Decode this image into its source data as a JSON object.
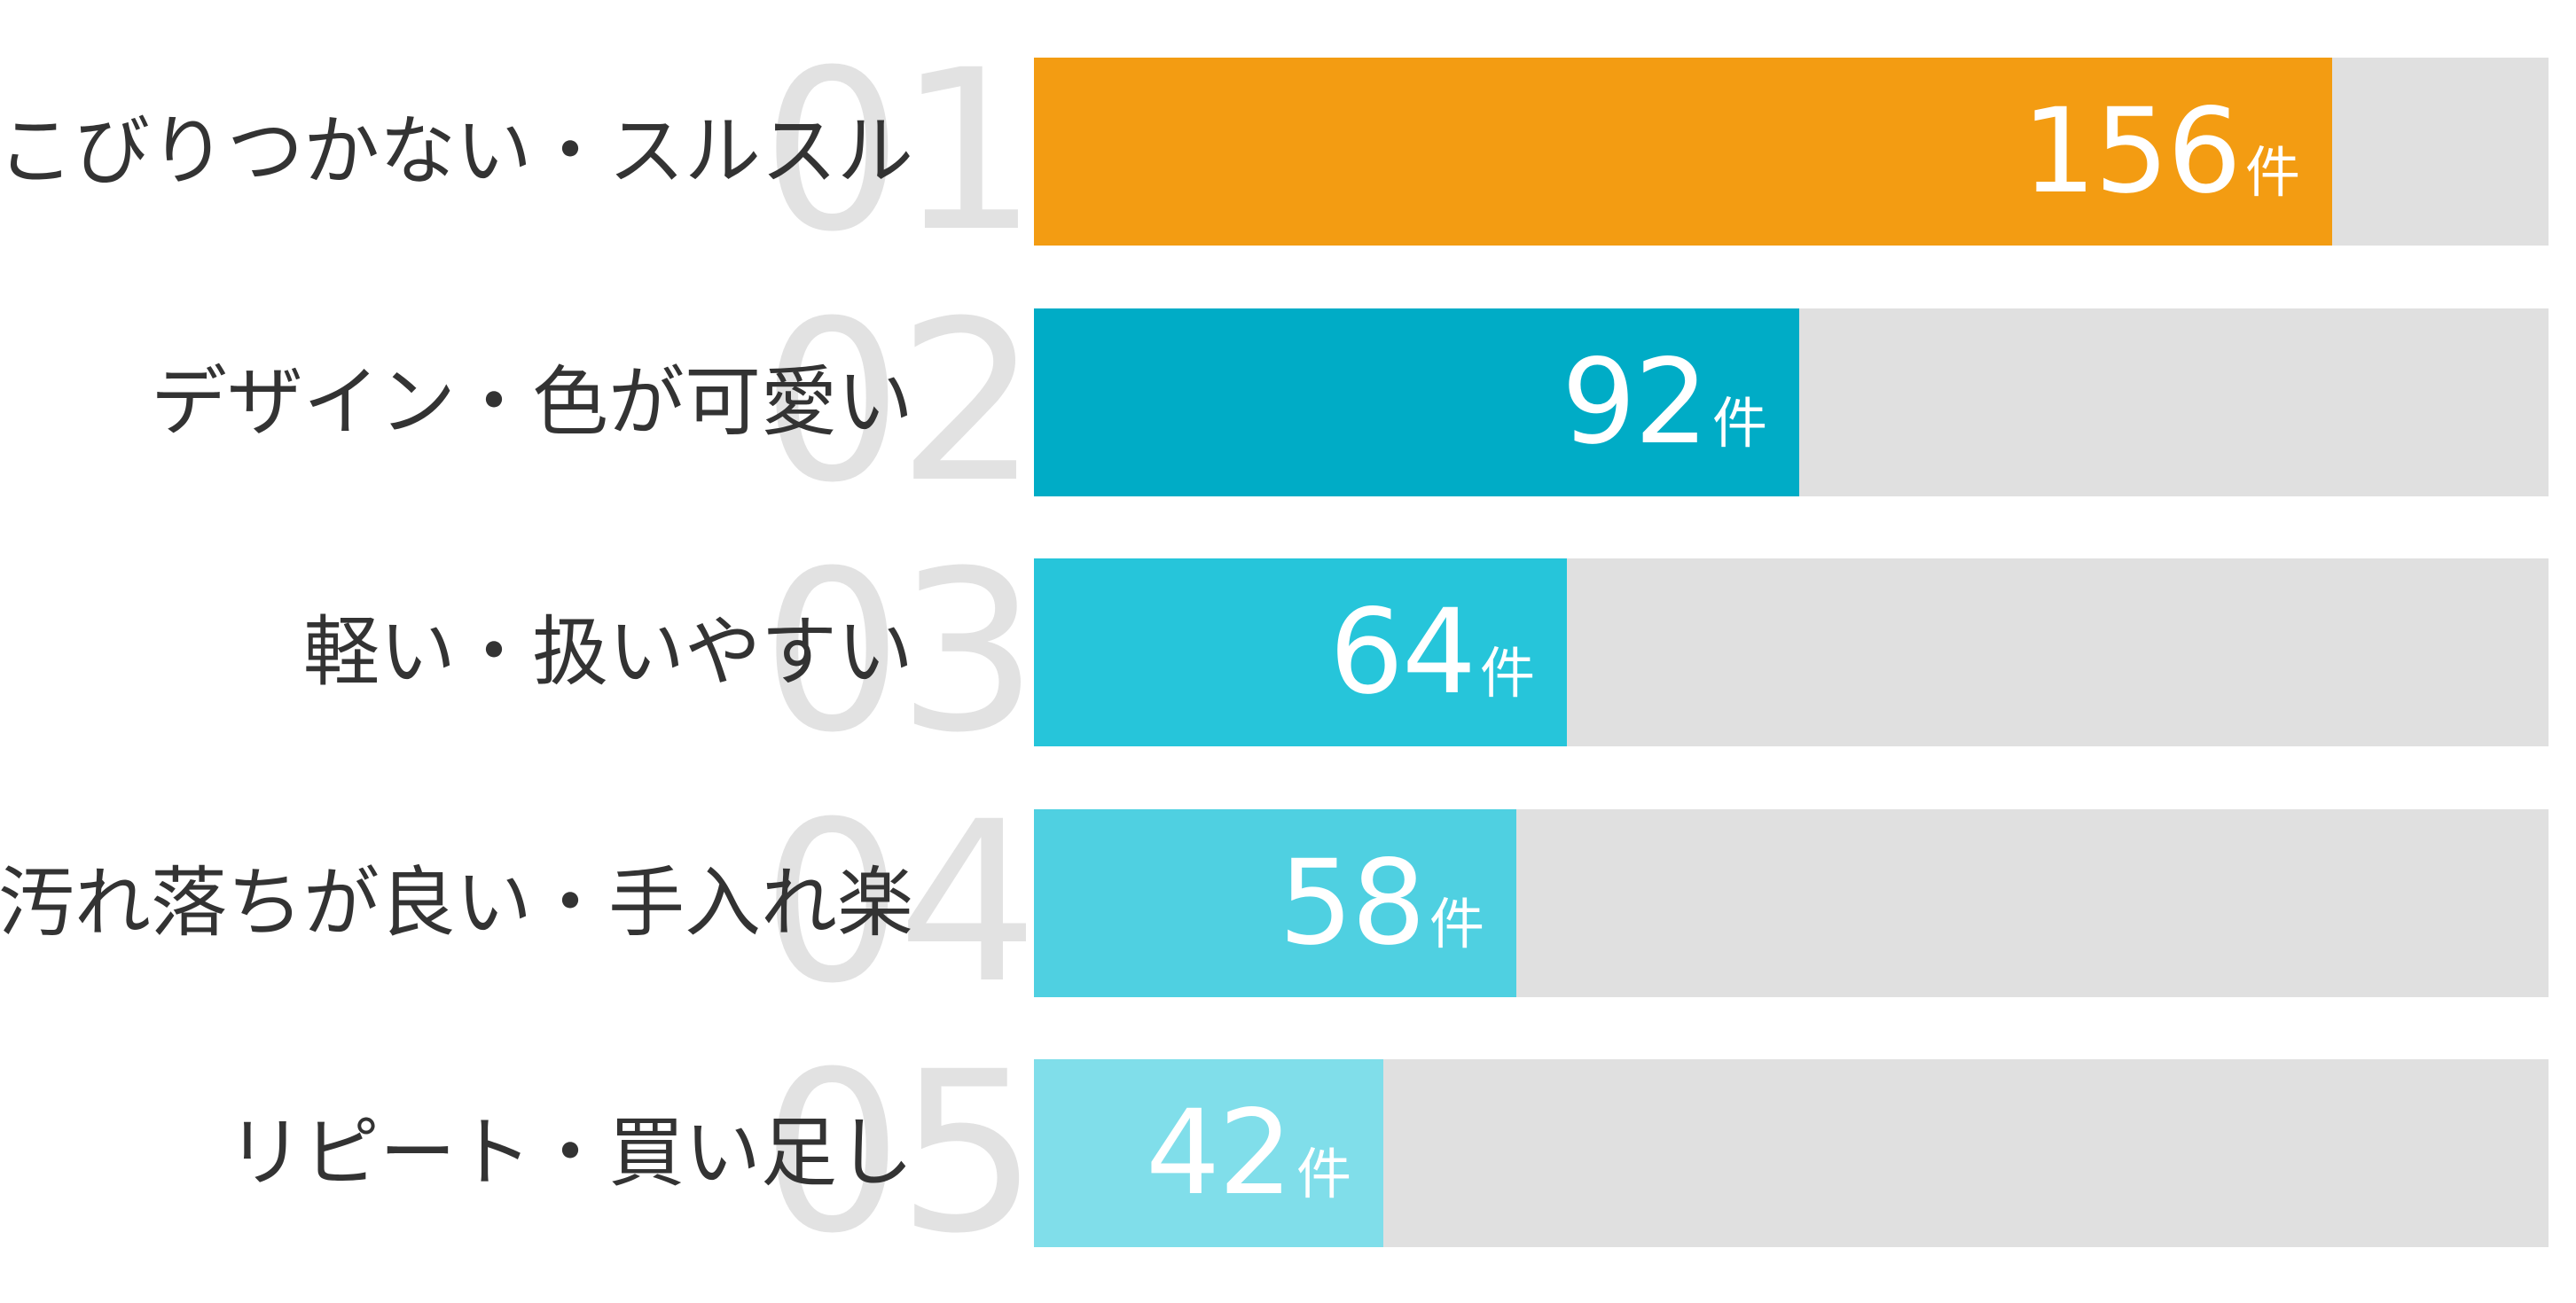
{
  "chart_data": {
    "type": "bar",
    "orientation": "horizontal",
    "title": "",
    "xlabel": "",
    "ylabel": "",
    "unit": "件",
    "xlim": [
      0,
      182
    ],
    "categories": [
      "こびりつかない・スルスル",
      "デザイン・色が可愛い",
      "軽い・扱いやすい",
      "汚れ落ちが良い・手入れ楽",
      "リピート・買い足し"
    ],
    "ranks": [
      "01",
      "02",
      "03",
      "04",
      "05"
    ],
    "values": [
      156,
      92,
      64,
      58,
      42
    ],
    "colors": [
      "#f39c12",
      "#00acc6",
      "#26c5da",
      "#4fd0e1",
      "#80deea"
    ],
    "track_color": "#e0e0e0",
    "grid": false,
    "legend": "none"
  }
}
